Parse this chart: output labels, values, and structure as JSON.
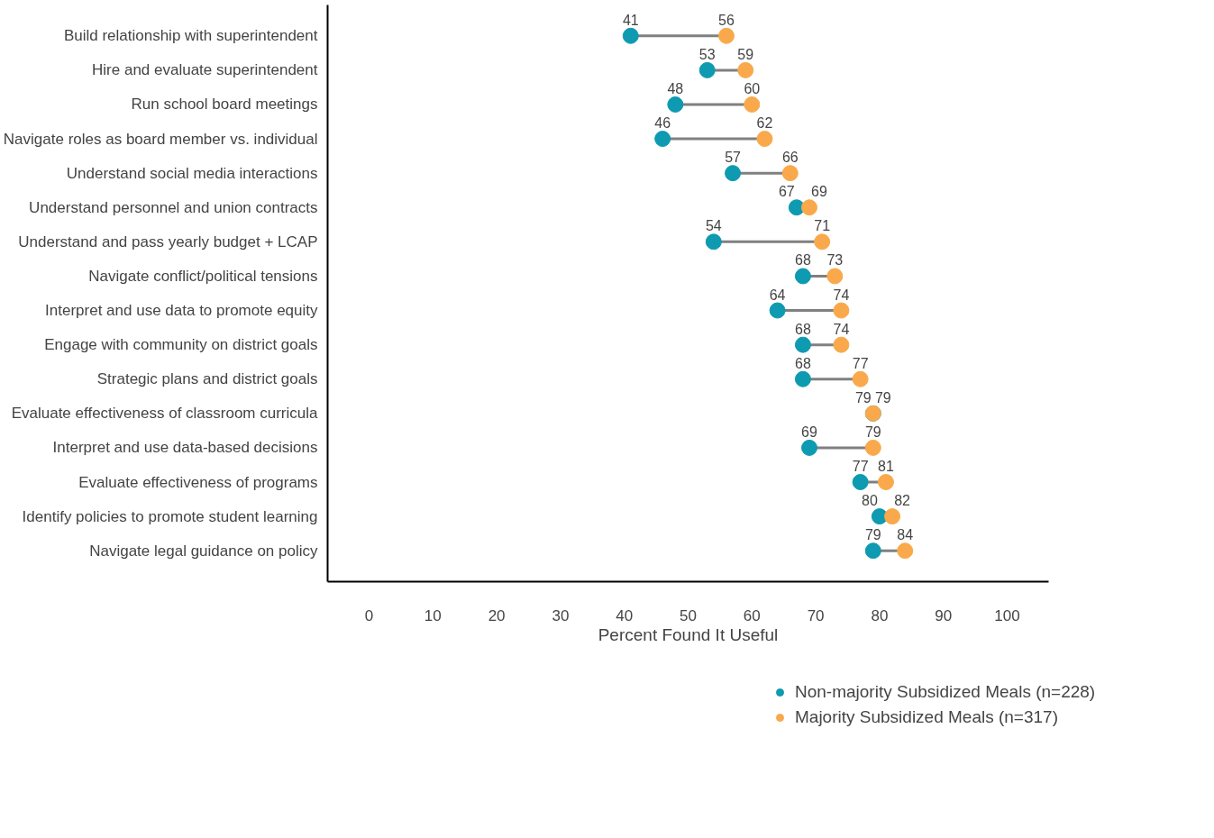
{
  "chart_data": {
    "type": "scatter",
    "orientation": "horizontal",
    "xlabel": "Percent Found It Useful",
    "categories": [
      "Build relationship with superintendent",
      "Hire and evaluate superintendent",
      "Run school board meetings",
      "Navigate roles as board member vs. individual",
      "Understand social media interactions",
      "Understand personnel and union contracts",
      "Understand and pass yearly budget + LCAP",
      "Navigate conflict/political tensions",
      "Interpret and use data to promote equity",
      "Engage with community on district goals",
      "Strategic plans and district goals",
      "Evaluate effectiveness of classroom curricula",
      "Interpret and use data-based decisions",
      "Evaluate effectiveness of programs",
      "Identify policies to promote student learning",
      "Navigate legal guidance on policy"
    ],
    "series": [
      {
        "name": "Non-majority Subsidized Meals (n=228)",
        "color": "#0e9ab0",
        "values": [
          41,
          53,
          48,
          46,
          57,
          67,
          54,
          68,
          64,
          68,
          68,
          79,
          69,
          77,
          80,
          79
        ]
      },
      {
        "name": "Majority Subsidized Meals (n=317)",
        "color": "#f9a94b",
        "values": [
          56,
          59,
          60,
          62,
          66,
          69,
          71,
          73,
          74,
          74,
          77,
          79,
          79,
          81,
          82,
          84
        ]
      }
    ],
    "xlim": [
      -6.5,
      106.5
    ],
    "xticks": [
      0,
      10,
      20,
      30,
      40,
      50,
      60,
      70,
      80,
      90,
      100
    ],
    "data_labels": true,
    "grid": false,
    "legend": "bottom",
    "marker": "circle"
  }
}
